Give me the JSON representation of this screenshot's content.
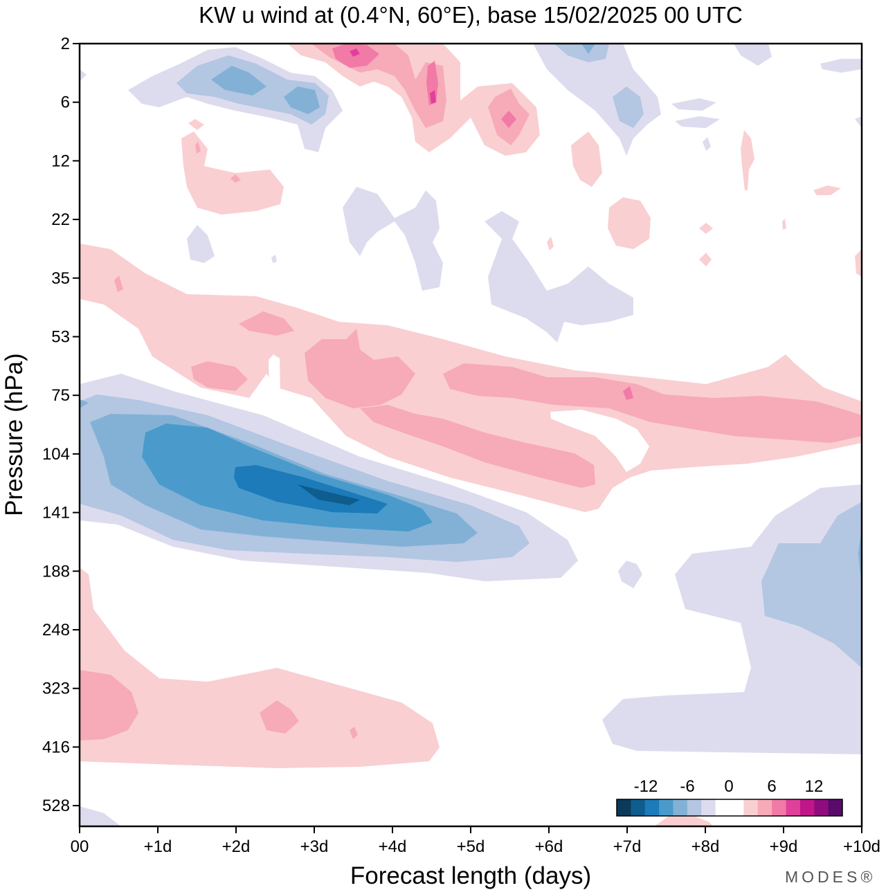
{
  "chart_data": {
    "type": "heatmap",
    "title": "KW u wind at (0.4°N, 60°E),  base 15/02/2025  00 UTC",
    "xlabel": "Forecast length (days)",
    "ylabel": "Pressure (hPa)",
    "x_ticks": [
      "00",
      "+1d",
      "+2d",
      "+3d",
      "+4d",
      "+5d",
      "+6d",
      "+7d",
      "+8d",
      "+9d",
      "+10d"
    ],
    "xlim": [
      0,
      10
    ],
    "y_ticks": [
      "2",
      "6",
      "12",
      "22",
      "35",
      "53",
      "75",
      "104",
      "141",
      "188",
      "248",
      "323",
      "416",
      "528"
    ],
    "y_scale": "log",
    "colorbar": {
      "labels": [
        "-12",
        "-6",
        "0",
        "6",
        "12"
      ],
      "colors": [
        "#0b3a5a",
        "#0f5c8e",
        "#1c7bb8",
        "#4a9bcc",
        "#83b1d6",
        "#b3c6e2",
        "#dddcee",
        "#ffffff",
        "#ffffff",
        "#f9cfd2",
        "#f7aab8",
        "#f27aa6",
        "#e0409a",
        "#c0168a",
        "#8f0c7f",
        "#5a0a6a"
      ]
    },
    "features": [
      {
        "sign": "negative",
        "x_range": [
          0,
          6.4
        ],
        "p_range": [
          75,
          188
        ],
        "peak": -12
      },
      {
        "sign": "negative",
        "x_range": [
          0.6,
          3.3
        ],
        "p_range": [
          2,
          12
        ],
        "peak": -8
      },
      {
        "sign": "negative",
        "x_range": [
          7.6,
          10
        ],
        "p_range": [
          141,
          460
        ],
        "peak": -6
      },
      {
        "sign": "positive",
        "x_range": [
          0,
          10
        ],
        "p_range": [
          35,
          130
        ],
        "peak": 8
      },
      {
        "sign": "positive",
        "x_range": [
          2.6,
          5.8
        ],
        "p_range": [
          2,
          10
        ],
        "peak": 10
      },
      {
        "sign": "positive",
        "x_range": [
          0,
          4.6
        ],
        "p_range": [
          290,
          460
        ],
        "peak": 6
      },
      {
        "sign": "positive",
        "x_range": [
          1.3,
          2.6
        ],
        "p_range": [
          8,
          22
        ],
        "peak": 3
      }
    ]
  },
  "logo": "MODES®"
}
